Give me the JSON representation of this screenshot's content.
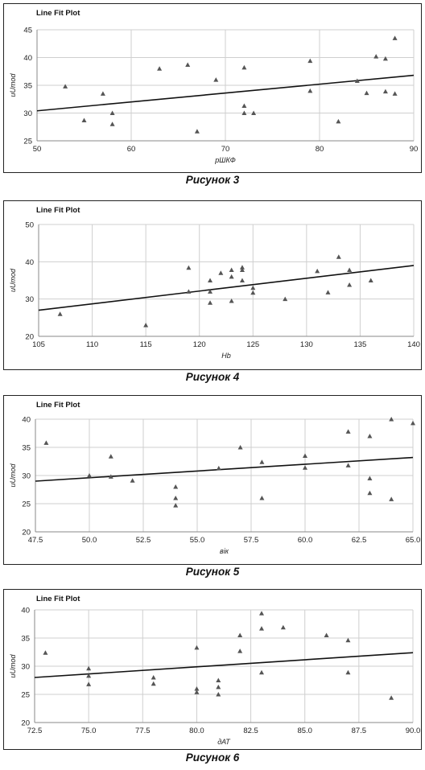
{
  "chart_data": [
    {
      "type": "scatter",
      "title": "Line Fit Plot",
      "xlabel": "рШКФ",
      "ylabel": "uUmod",
      "caption": "Рисунок 3",
      "xlim": [
        50,
        90
      ],
      "ylim": [
        25,
        45
      ],
      "xticks": [
        "50",
        "60",
        "70",
        "80",
        "90"
      ],
      "yticks": [
        "25",
        "30",
        "35",
        "40",
        "45"
      ],
      "points": [
        [
          53,
          34.8
        ],
        [
          55,
          28.7
        ],
        [
          57,
          33.5
        ],
        [
          58,
          30
        ],
        [
          58,
          28
        ],
        [
          63,
          38
        ],
        [
          66,
          38.7
        ],
        [
          67,
          26.7
        ],
        [
          69,
          36
        ],
        [
          72,
          38.2
        ],
        [
          72,
          31.3
        ],
        [
          72,
          30
        ],
        [
          73,
          30
        ],
        [
          79,
          39.4
        ],
        [
          79,
          34
        ],
        [
          82,
          28.5
        ],
        [
          84,
          35.8
        ],
        [
          85,
          33.6
        ],
        [
          86,
          40.2
        ],
        [
          87,
          39.8
        ],
        [
          87,
          33.9
        ],
        [
          88,
          43.5
        ],
        [
          88,
          33.5
        ]
      ],
      "fit": [
        [
          50,
          30.4
        ],
        [
          90,
          36.8
        ]
      ],
      "grid": true
    },
    {
      "type": "scatter",
      "title": "Line Fit Plot",
      "xlabel": "Hb",
      "ylabel": "uUmod",
      "caption": "Рисунок 4",
      "xlim": [
        105,
        140
      ],
      "ylim": [
        20,
        50
      ],
      "xticks": [
        "105",
        "110",
        "115",
        "120",
        "125",
        "130",
        "135",
        "140"
      ],
      "yticks": [
        "20",
        "30",
        "40",
        "50"
      ],
      "points": [
        [
          107,
          26
        ],
        [
          115,
          23
        ],
        [
          119,
          38.4
        ],
        [
          119,
          32
        ],
        [
          121,
          35
        ],
        [
          121,
          32
        ],
        [
          121,
          29
        ],
        [
          122,
          37
        ],
        [
          123,
          37.8
        ],
        [
          123,
          36
        ],
        [
          123,
          29.5
        ],
        [
          124,
          38.5
        ],
        [
          124,
          37.8
        ],
        [
          124,
          35
        ],
        [
          125,
          33
        ],
        [
          125,
          31.7
        ],
        [
          128,
          30
        ],
        [
          131,
          37.5
        ],
        [
          132,
          31.8
        ],
        [
          133,
          41.3
        ],
        [
          134,
          37.8
        ],
        [
          134,
          33.8
        ],
        [
          136,
          35
        ]
      ],
      "fit": [
        [
          105,
          27
        ],
        [
          140,
          39
        ]
      ],
      "grid": true
    },
    {
      "type": "scatter",
      "title": "Line Fit Plot",
      "xlabel": "вік",
      "ylabel": "uUmod",
      "caption": "Рисунок 5",
      "xlim": [
        47.5,
        65.0
      ],
      "ylim": [
        20,
        40
      ],
      "xticks": [
        "47.5",
        "50.0",
        "52.5",
        "55.0",
        "57.5",
        "60.0",
        "62.5",
        "65.0"
      ],
      "yticks": [
        "20",
        "25",
        "30",
        "35",
        "40"
      ],
      "points": [
        [
          48,
          35.8
        ],
        [
          50,
          30
        ],
        [
          51,
          33.4
        ],
        [
          51,
          29.8
        ],
        [
          52,
          29.1
        ],
        [
          54,
          28
        ],
        [
          54,
          26
        ],
        [
          54,
          24.7
        ],
        [
          56,
          31.3
        ],
        [
          57,
          35
        ],
        [
          58,
          32.4
        ],
        [
          58,
          26
        ],
        [
          60,
          33.5
        ],
        [
          60,
          31.4
        ],
        [
          62,
          37.8
        ],
        [
          62,
          31.8
        ],
        [
          63,
          37
        ],
        [
          63,
          29.5
        ],
        [
          63,
          26.9
        ],
        [
          64,
          40
        ],
        [
          64,
          25.8
        ],
        [
          65,
          39.3
        ]
      ],
      "fit": [
        [
          47.5,
          29
        ],
        [
          65,
          33.2
        ]
      ],
      "grid": true
    },
    {
      "type": "scatter",
      "title": "Line Fit Plot",
      "xlabel": "дАТ",
      "ylabel": "uUmod",
      "caption": "Рисунок 6",
      "xlim": [
        72.5,
        90.0
      ],
      "ylim": [
        20,
        40
      ],
      "xticks": [
        "72.5",
        "75.0",
        "77.5",
        "80.0",
        "82.5",
        "85.0",
        "87.5",
        "90.0"
      ],
      "yticks": [
        "20",
        "25",
        "30",
        "35",
        "40"
      ],
      "points": [
        [
          73,
          32.4
        ],
        [
          75,
          29.6
        ],
        [
          75,
          28.3
        ],
        [
          75,
          26.8
        ],
        [
          78,
          28
        ],
        [
          78,
          26.9
        ],
        [
          80,
          33.3
        ],
        [
          80,
          26
        ],
        [
          80,
          25.4
        ],
        [
          81,
          27.5
        ],
        [
          81,
          26.3
        ],
        [
          81,
          25
        ],
        [
          82,
          35.5
        ],
        [
          82,
          32.7
        ],
        [
          83,
          39.4
        ],
        [
          83,
          36.7
        ],
        [
          83,
          28.9
        ],
        [
          84,
          36.9
        ],
        [
          86,
          35.5
        ],
        [
          87,
          34.6
        ],
        [
          87,
          28.9
        ],
        [
          89,
          24.4
        ]
      ],
      "fit": [
        [
          72.5,
          28
        ],
        [
          90,
          32.4
        ]
      ],
      "grid": true
    }
  ]
}
